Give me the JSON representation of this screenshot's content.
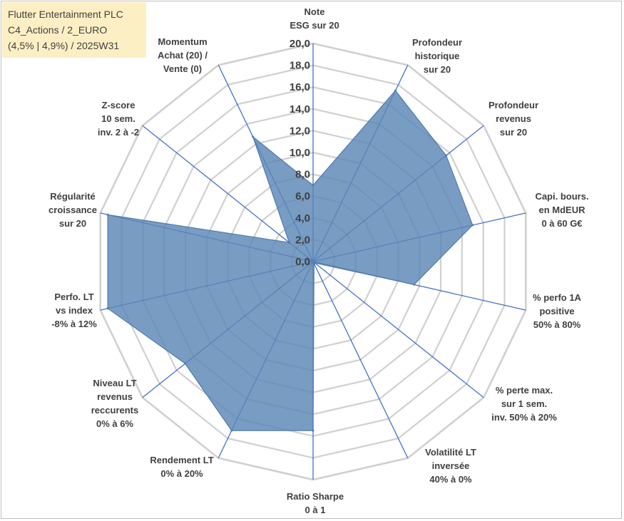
{
  "info_box": {
    "line1": "Flutter Entertainment PLC",
    "line2": "C4_Actions / 2_EURO",
    "line3": "(4,5% | 4,9%) / 2025W31"
  },
  "colors": {
    "fill": "#5b86b6",
    "fill_opacity": "0.82",
    "stroke": "#4f7ab0",
    "axis": "#4472c4",
    "grid": "#d0d0d0",
    "info_box_bg": "#fdefc4"
  },
  "chart_data": {
    "type": "radar",
    "r_range": [
      0,
      20
    ],
    "tick_labels": [
      "0,0",
      "2,0",
      "4,0",
      "6,0",
      "8,0",
      "10,0",
      "12,0",
      "14,0",
      "16,0",
      "18,0",
      "20,0"
    ],
    "grid": true,
    "legend": "none",
    "axes": [
      {
        "label": [
          "Note",
          "ESG sur 20"
        ],
        "value": 7.0
      },
      {
        "label": [
          "Profondeur",
          "historique",
          "sur 20"
        ],
        "value": 17.4
      },
      {
        "label": [
          "Profondeur",
          "revenus",
          "sur 20"
        ],
        "value": 15.6
      },
      {
        "label": [
          "Capi. bours.",
          "en MdEUR",
          "0 à 60 G€"
        ],
        "value": 15.0
      },
      {
        "label": [
          "% perfo 1A",
          "positive",
          "50% à 80%"
        ],
        "value": 9.5
      },
      {
        "label": [
          "% perte max.",
          "sur 1 sem.",
          "inv. 50% à 20%"
        ],
        "value": 0.2
      },
      {
        "label": [
          "Volatilité LT",
          "inversée",
          "40% à 0%"
        ],
        "value": 0.2
      },
      {
        "label": [
          "Ratio Sharpe",
          "0 à 1"
        ],
        "value": 15.5
      },
      {
        "label": [
          "Rendement LT",
          "0% à 20%"
        ],
        "value": 17.2
      },
      {
        "label": [
          "Niveau LT",
          "revenus",
          "reccurents",
          "0% à 6%"
        ],
        "value": 15.0
      },
      {
        "label": [
          "Perfo. LT",
          "vs index",
          "-8% à 12%"
        ],
        "value": 19.3
      },
      {
        "label": [
          "Régularité",
          "croissance",
          "sur 20"
        ],
        "value": 19.3
      },
      {
        "label": [
          "Z-score",
          "10 sem.",
          "inv. 2 à -2"
        ],
        "value": 2.8
      },
      {
        "label": [
          "Momentum",
          "Achat (20) /",
          "Vente (0)"
        ],
        "value": 12.7
      }
    ]
  }
}
